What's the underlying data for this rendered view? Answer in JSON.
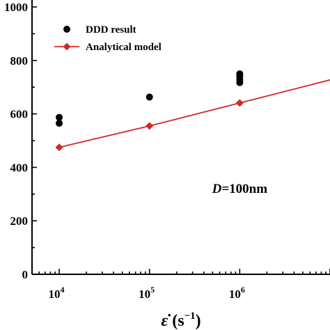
{
  "chart_data": {
    "type": "scatter",
    "xscale": "log",
    "xlim": [
      5000,
      10000000
    ],
    "ylim": [
      0,
      1000
    ],
    "x_ticks": [
      {
        "value": 10000,
        "base": "10",
        "exp": "4"
      },
      {
        "value": 100000,
        "base": "10",
        "exp": "5"
      },
      {
        "value": 1000000,
        "base": "10",
        "exp": "6"
      }
    ],
    "y_ticks": [
      {
        "value": 0,
        "label": "0"
      },
      {
        "value": 200,
        "label": "200"
      },
      {
        "value": 400,
        "label": "400"
      },
      {
        "value": 600,
        "label": "600"
      },
      {
        "value": 800,
        "label": "800"
      },
      {
        "value": 1000,
        "label": "1000"
      }
    ],
    "xlabel": {
      "symbol": "ε̇",
      "unit_open": " (s",
      "unit_exp": "−1",
      "unit_close": ")"
    },
    "ylabel": "",
    "legend": {
      "placement": "top-left"
    },
    "series": [
      {
        "name": "DDD result",
        "type": "scatter",
        "color": "#000000",
        "marker": "circle",
        "points": [
          {
            "x": 10000,
            "y": 565
          },
          {
            "x": 10000,
            "y": 587
          },
          {
            "x": 100000,
            "y": 663
          },
          {
            "x": 1000000,
            "y": 717
          },
          {
            "x": 1000000,
            "y": 728
          },
          {
            "x": 1000000,
            "y": 740
          },
          {
            "x": 1000000,
            "y": 750
          }
        ]
      },
      {
        "name": "Analytical model",
        "type": "line",
        "color": "#d62728",
        "marker": "diamond",
        "points": [
          {
            "x": 10000,
            "y": 475
          },
          {
            "x": 100000,
            "y": 555
          },
          {
            "x": 1000000,
            "y": 641
          },
          {
            "x": 10000000,
            "y": 727
          }
        ],
        "marker_points": [
          {
            "x": 10000,
            "y": 475
          },
          {
            "x": 100000,
            "y": 555
          },
          {
            "x": 1000000,
            "y": 641
          }
        ]
      }
    ],
    "annotations": [
      {
        "italic": "D",
        "text": "=100nm",
        "x": 1000000,
        "y": 305
      }
    ]
  }
}
